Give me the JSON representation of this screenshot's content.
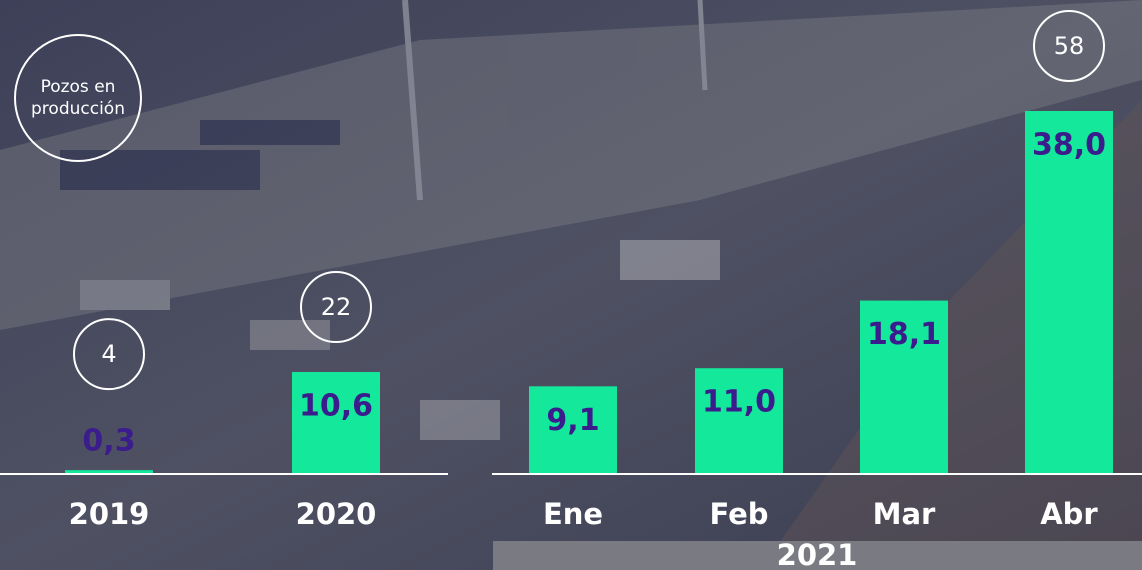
{
  "chart_data": {
    "type": "bar",
    "categories": [
      "2019",
      "2020",
      "Ene",
      "Feb",
      "Mar",
      "Abr"
    ],
    "group_label": "2021",
    "series": [
      {
        "values": [
          0.3,
          10.6,
          9.1,
          11.0,
          18.1,
          38.0
        ],
        "value_labels": [
          "0,3",
          "10,6",
          "9,1",
          "11,0",
          "18,1",
          "38,0"
        ],
        "color": "#14e89b"
      }
    ],
    "wells": {
      "label_lines": [
        "Pozos en",
        "producción"
      ],
      "values": [
        4,
        22,
        null,
        null,
        null,
        58
      ]
    }
  }
}
